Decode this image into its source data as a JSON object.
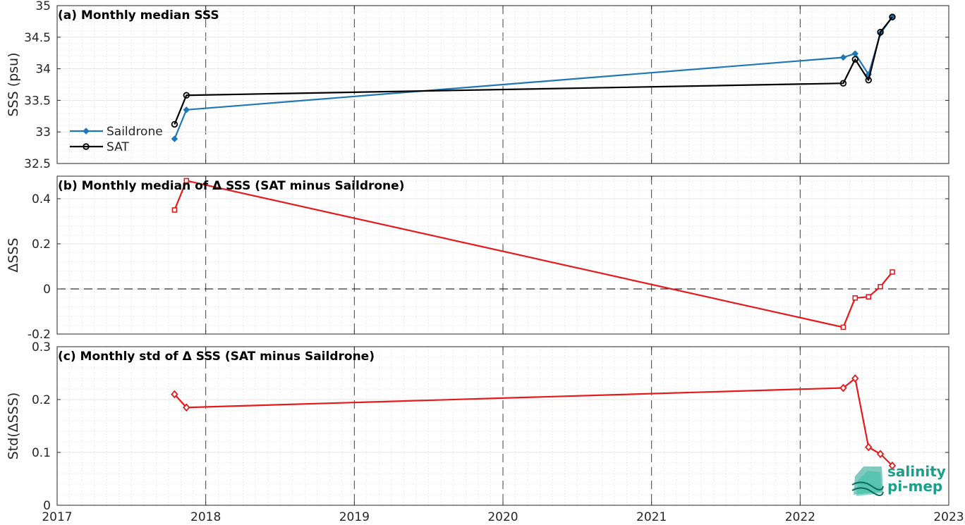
{
  "colors": {
    "saildrone": "#1f77b4",
    "sat": "#000000",
    "delta": "#e41a1c",
    "grid": "#d0d0d0",
    "logo_teal": "#1b9e8a"
  },
  "logo": {
    "line1": "salinity",
    "line2": "pi-mep"
  },
  "chart_data": [
    {
      "type": "line",
      "title": "(a) Monthly median SSS",
      "ylabel": "SSS (psu)",
      "xlim": [
        2017,
        2023
      ],
      "ylim": [
        32.5,
        35
      ],
      "xticks": [
        "2017",
        "2018",
        "2019",
        "2020",
        "2021",
        "2022",
        "2023"
      ],
      "yticks": [
        "32.5",
        "33",
        "33.5",
        "34",
        "34.5",
        "35"
      ],
      "grid": true,
      "legend": "left",
      "series": [
        {
          "name": "Saildrone",
          "marker": "filled-diamond",
          "x": [
            2017.79,
            2017.87,
            2022.29,
            2022.37,
            2022.46,
            2022.54,
            2022.62
          ],
          "y": [
            32.89,
            33.35,
            34.18,
            34.24,
            33.91,
            34.56,
            34.82
          ]
        },
        {
          "name": "SAT",
          "marker": "circle",
          "x": [
            2017.79,
            2017.87,
            2022.29,
            2022.37,
            2022.46,
            2022.54,
            2022.62
          ],
          "y": [
            33.12,
            33.58,
            33.77,
            34.15,
            33.82,
            34.58,
            34.82
          ]
        }
      ]
    },
    {
      "type": "line",
      "title": "(b) Monthly median of Δ SSS (SAT minus Saildrone)",
      "ylabel": "ΔSSS",
      "xlim": [
        2017,
        2023
      ],
      "ylim": [
        -0.2,
        0.5
      ],
      "yticks": [
        "-0.2",
        "0",
        "0.2",
        "0.4"
      ],
      "grid": true,
      "zero_line": true,
      "series": [
        {
          "marker": "square",
          "x": [
            2017.79,
            2017.87,
            2022.29,
            2022.37,
            2022.46,
            2022.54,
            2022.62
          ],
          "y": [
            0.35,
            0.48,
            -0.17,
            -0.04,
            -0.035,
            0.01,
            0.075
          ]
        }
      ]
    },
    {
      "type": "line",
      "title": "(c) Monthly std of Δ SSS (SAT minus Saildrone)",
      "ylabel": "Std(ΔSSS)",
      "xlim": [
        2017,
        2023
      ],
      "ylim": [
        0,
        0.3
      ],
      "yticks": [
        "0",
        "0.1",
        "0.2",
        "0.3"
      ],
      "grid": true,
      "series": [
        {
          "marker": "diamond",
          "x": [
            2017.79,
            2017.87,
            2022.29,
            2022.37,
            2022.46,
            2022.54,
            2022.62
          ],
          "y": [
            0.21,
            0.185,
            0.222,
            0.24,
            0.11,
            0.097,
            0.075
          ]
        }
      ]
    }
  ]
}
